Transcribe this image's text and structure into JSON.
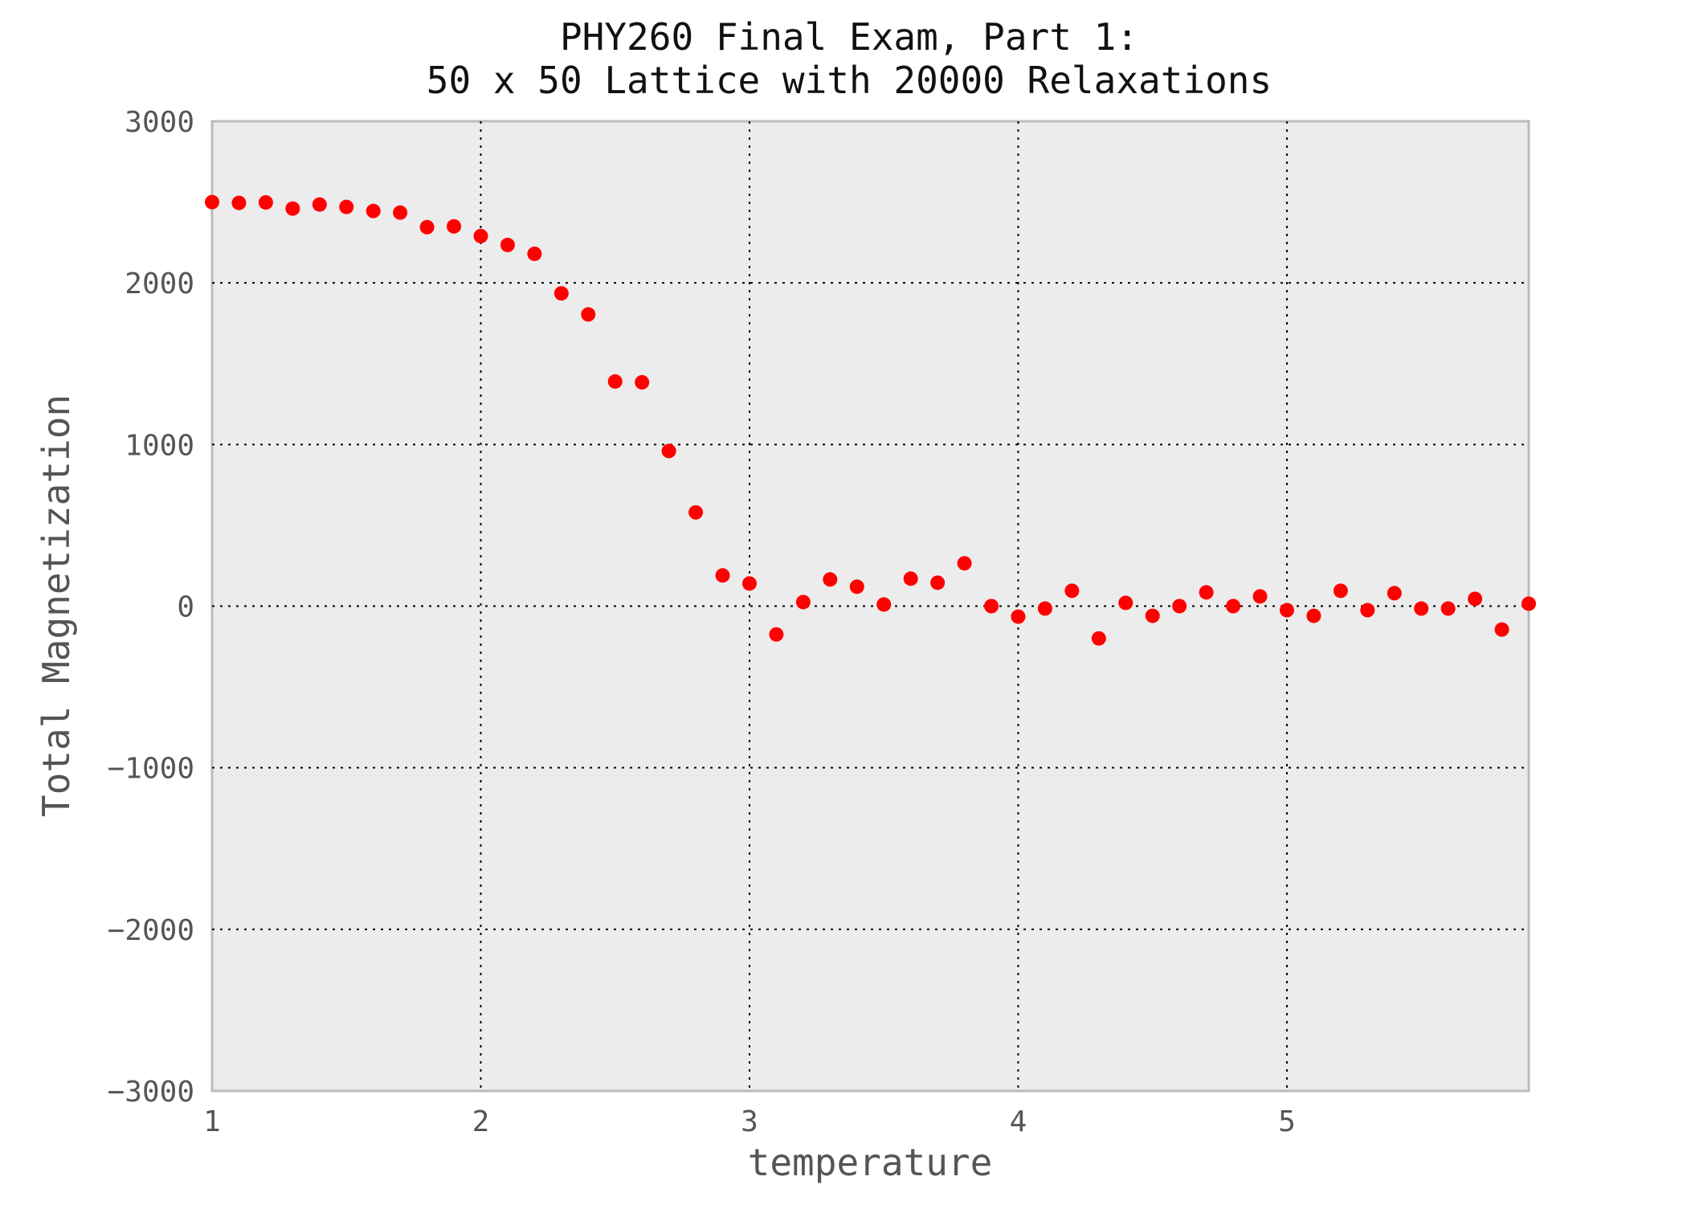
{
  "chart_data": {
    "type": "scatter",
    "title_line1": "PHY260 Final Exam, Part 1:",
    "title_line2": "50 x 50 Lattice with 20000 Relaxations",
    "xlabel": "temperature",
    "ylabel": "Total Magnetization",
    "xlim": [
      1,
      5.9
    ],
    "ylim": [
      -3000,
      3000
    ],
    "xticks": [
      1,
      2,
      3,
      4,
      5
    ],
    "yticks": [
      3000,
      2000,
      1000,
      0,
      -1000,
      -2000,
      -3000
    ],
    "ytick_labels": [
      "3000",
      "2000",
      "1000",
      "0",
      "−1000",
      "−2000",
      "−3000"
    ],
    "grid": true,
    "marker_color": "#ff0000",
    "background_color": "#ececec",
    "series": [
      {
        "x": [
          1.0,
          1.1,
          1.2,
          1.3,
          1.4,
          1.5,
          1.6,
          1.7,
          1.8,
          1.9,
          2.0,
          2.1,
          2.2,
          2.3,
          2.4,
          2.5,
          2.6,
          2.7,
          2.8,
          2.9,
          3.0,
          3.1,
          3.2,
          3.3,
          3.4,
          3.5,
          3.6,
          3.7,
          3.8,
          3.9,
          4.0,
          4.1,
          4.2,
          4.3,
          4.4,
          4.5,
          4.6,
          4.7,
          4.8,
          4.9,
          5.0,
          5.1,
          5.2,
          5.3,
          5.4,
          5.5,
          5.6,
          5.7,
          5.8,
          5.9
        ],
        "y": [
          2500,
          2495,
          2498,
          2460,
          2485,
          2470,
          2445,
          2435,
          2345,
          2350,
          2290,
          2235,
          2180,
          1935,
          1805,
          1390,
          1385,
          960,
          580,
          190,
          140,
          -175,
          25,
          165,
          120,
          10,
          170,
          145,
          265,
          0,
          -65,
          -15,
          95,
          -200,
          20,
          -60,
          0,
          85,
          0,
          60,
          -25,
          -60,
          95,
          -25,
          80,
          -15,
          -15,
          45,
          -145,
          15
        ]
      }
    ]
  }
}
